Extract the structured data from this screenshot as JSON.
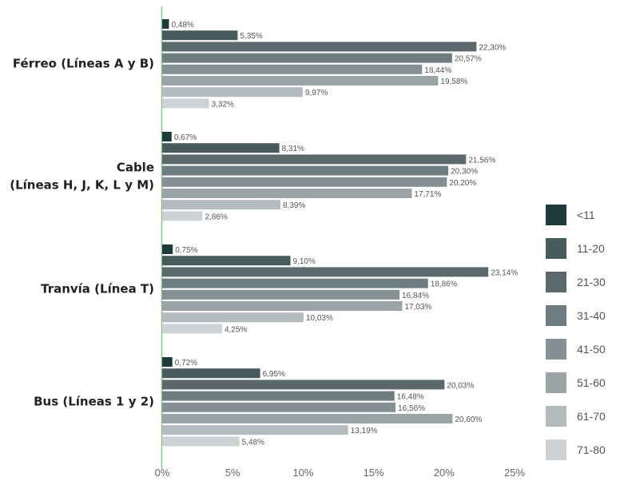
{
  "chart_data": {
    "type": "bar",
    "orientation": "horizontal",
    "categories": [
      [
        "Férreo (Líneas A y B)"
      ],
      [
        "Cable",
        "(Líneas H, J, K, L y M)"
      ],
      [
        "Tranvía (Línea T)"
      ],
      [
        "Bus (Líneas 1 y 2)"
      ]
    ],
    "series": [
      {
        "name": "<11",
        "color": "#1e3a3a",
        "values": [
          0.48,
          0.67,
          0.75,
          0.72
        ],
        "labels": [
          "0,48%",
          "0,67%",
          "0,75%",
          "0,72%"
        ]
      },
      {
        "name": "11-20",
        "color": "#475b5d",
        "values": [
          5.35,
          8.31,
          9.1,
          6.95
        ],
        "labels": [
          "5,35%",
          "8,31%",
          "9,10%",
          "6,95%"
        ]
      },
      {
        "name": "21-30",
        "color": "#5b696c",
        "values": [
          22.3,
          21.56,
          23.14,
          20.03
        ],
        "labels": [
          "22,30%",
          "21,56%",
          "23,14%",
          "20,03%"
        ]
      },
      {
        "name": "31-40",
        "color": "#6f7c80",
        "values": [
          20.57,
          20.3,
          18.86,
          16.48
        ],
        "labels": [
          "20,57%",
          "20,30%",
          "18,86%",
          "16,48%"
        ]
      },
      {
        "name": "41-50",
        "color": "#849094",
        "values": [
          18.44,
          20.2,
          16.84,
          16.56
        ],
        "labels": [
          "18,44%",
          "20,20%",
          "16,84%",
          "16,56%"
        ]
      },
      {
        "name": "51-60",
        "color": "#9aa4a7",
        "values": [
          19.58,
          17.71,
          17.03,
          20.6
        ],
        "labels": [
          "19,58%",
          "17,71%",
          "17,03%",
          "20,60%"
        ]
      },
      {
        "name": "61-70",
        "color": "#b3bbbd",
        "values": [
          9.97,
          8.39,
          10.03,
          13.19
        ],
        "labels": [
          "9,97%",
          "8,39%",
          "10,03%",
          "13,19%"
        ]
      },
      {
        "name": "71-80",
        "color": "#cdd3d4",
        "values": [
          3.32,
          2.86,
          4.25,
          5.48
        ],
        "labels": [
          "3,32%",
          "2,86%",
          "4,25%",
          "5,48%"
        ]
      }
    ],
    "xlim": [
      0,
      25
    ],
    "x_ticks": [
      0,
      5,
      10,
      15,
      20,
      25
    ],
    "x_tick_labels": [
      "0%",
      "5%",
      "10%",
      "15%",
      "20%",
      "25%"
    ],
    "axis_color": "#7dc97d",
    "grid": false,
    "legend_position": "right"
  }
}
